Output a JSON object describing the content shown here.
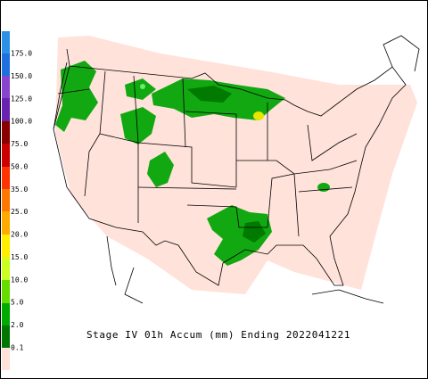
{
  "title": "Stage IV 01h Accum (mm) Ending 2022041221",
  "legend": {
    "labels": [
      "175.0",
      "150.0",
      "125.0",
      "100.0",
      "75.0",
      "50.0",
      "35.0",
      "25.0",
      "20.0",
      "15.0",
      "10.0",
      "5.0",
      "2.0",
      "0.1"
    ]
  }
}
